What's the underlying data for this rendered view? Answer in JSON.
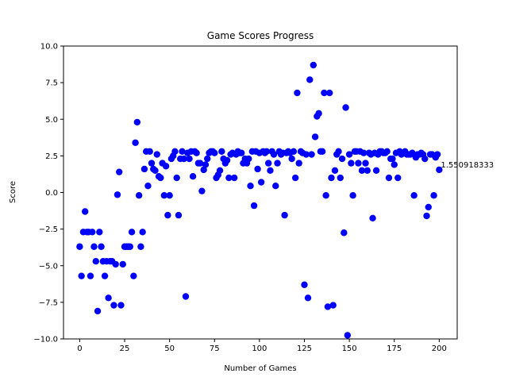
{
  "chart_data": {
    "type": "scatter",
    "title": "Game Scores Progress",
    "xlabel": "Number of Games",
    "ylabel": "Score",
    "xlim": [
      -9,
      210
    ],
    "ylim": [
      -10,
      10
    ],
    "xticks": [
      0,
      25,
      50,
      75,
      100,
      125,
      150,
      175,
      200
    ],
    "yticks": [
      -10.0,
      -7.5,
      -5.0,
      -2.5,
      0.0,
      2.5,
      5.0,
      7.5,
      10.0
    ],
    "xtick_labels": [
      "0",
      "25",
      "50",
      "75",
      "100",
      "125",
      "150",
      "175",
      "200"
    ],
    "ytick_labels": [
      "−10.0",
      "−7.5",
      "−5.0",
      "−2.5",
      "0.0",
      "2.5",
      "5.0",
      "7.5",
      "10.0"
    ],
    "grid": false,
    "marker_color": "#0000ff",
    "annotation": {
      "x": 200,
      "y": 1.55,
      "text": "1.550918333"
    },
    "points": [
      [
        0,
        -3.7
      ],
      [
        1,
        -5.7
      ],
      [
        2,
        -2.7
      ],
      [
        3,
        -1.3
      ],
      [
        4,
        -2.7
      ],
      [
        5,
        -2.7
      ],
      [
        6,
        -5.7
      ],
      [
        7,
        -2.7
      ],
      [
        8,
        -3.7
      ],
      [
        9,
        -4.7
      ],
      [
        10,
        -8.1
      ],
      [
        11,
        -2.7
      ],
      [
        12,
        -3.7
      ],
      [
        13,
        -4.7
      ],
      [
        14,
        -5.7
      ],
      [
        15,
        -4.7
      ],
      [
        16,
        -7.2
      ],
      [
        17,
        -4.7
      ],
      [
        18,
        -4.7
      ],
      [
        19,
        -7.7
      ],
      [
        20,
        -4.9
      ],
      [
        21,
        -0.15
      ],
      [
        22,
        1.4
      ],
      [
        23,
        -7.7
      ],
      [
        24,
        -4.9
      ],
      [
        25,
        -3.7
      ],
      [
        26,
        -3.7
      ],
      [
        27,
        -3.7
      ],
      [
        28,
        -3.7
      ],
      [
        29,
        -2.7
      ],
      [
        30,
        -5.7
      ],
      [
        31,
        3.4
      ],
      [
        32,
        4.8
      ],
      [
        33,
        -0.2
      ],
      [
        34,
        -3.7
      ],
      [
        35,
        -2.7
      ],
      [
        36,
        1.6
      ],
      [
        37,
        2.8
      ],
      [
        38,
        0.45
      ],
      [
        39,
        2.8
      ],
      [
        40,
        2.0
      ],
      [
        41,
        1.6
      ],
      [
        42,
        1.5
      ],
      [
        43,
        2.6
      ],
      [
        44,
        1.1
      ],
      [
        45,
        1.0
      ],
      [
        46,
        2.0
      ],
      [
        47,
        -0.2
      ],
      [
        48,
        1.8
      ],
      [
        49,
        -1.55
      ],
      [
        50,
        -0.2
      ],
      [
        51,
        2.3
      ],
      [
        52,
        2.5
      ],
      [
        53,
        2.8
      ],
      [
        54,
        1.0
      ],
      [
        55,
        -1.55
      ],
      [
        56,
        2.3
      ],
      [
        57,
        2.8
      ],
      [
        58,
        2.3
      ],
      [
        59,
        -7.1
      ],
      [
        60,
        2.7
      ],
      [
        61,
        2.3
      ],
      [
        62,
        2.8
      ],
      [
        63,
        1.1
      ],
      [
        64,
        2.8
      ],
      [
        65,
        2.7
      ],
      [
        66,
        2.0
      ],
      [
        67,
        2.0
      ],
      [
        68,
        0.1
      ],
      [
        69,
        1.55
      ],
      [
        70,
        1.9
      ],
      [
        71,
        2.3
      ],
      [
        72,
        2.7
      ],
      [
        73,
        2.8
      ],
      [
        74,
        2.8
      ],
      [
        75,
        2.7
      ],
      [
        76,
        1.0
      ],
      [
        77,
        1.2
      ],
      [
        78,
        1.5
      ],
      [
        79,
        2.8
      ],
      [
        80,
        2.3
      ],
      [
        81,
        2.0
      ],
      [
        82,
        2.2
      ],
      [
        83,
        1.0
      ],
      [
        84,
        2.6
      ],
      [
        85,
        2.7
      ],
      [
        86,
        1.0
      ],
      [
        87,
        2.6
      ],
      [
        88,
        2.8
      ],
      [
        89,
        2.7
      ],
      [
        90,
        2.7
      ],
      [
        91,
        2.0
      ],
      [
        92,
        2.3
      ],
      [
        93,
        2.0
      ],
      [
        94,
        2.3
      ],
      [
        95,
        0.45
      ],
      [
        96,
        2.8
      ],
      [
        97,
        -0.9
      ],
      [
        98,
        2.8
      ],
      [
        99,
        1.6
      ],
      [
        100,
        2.7
      ],
      [
        101,
        0.7
      ],
      [
        102,
        2.8
      ],
      [
        103,
        2.7
      ],
      [
        104,
        2.8
      ],
      [
        105,
        2.0
      ],
      [
        106,
        1.5
      ],
      [
        107,
        2.8
      ],
      [
        108,
        2.6
      ],
      [
        109,
        0.45
      ],
      [
        110,
        2.0
      ],
      [
        111,
        2.8
      ],
      [
        112,
        2.6
      ],
      [
        113,
        2.7
      ],
      [
        114,
        -1.55
      ],
      [
        115,
        2.7
      ],
      [
        116,
        2.8
      ],
      [
        117,
        2.7
      ],
      [
        118,
        2.3
      ],
      [
        119,
        2.8
      ],
      [
        120,
        1.0
      ],
      [
        121,
        6.8
      ],
      [
        122,
        2.0
      ],
      [
        123,
        2.8
      ],
      [
        124,
        2.7
      ],
      [
        125,
        -6.3
      ],
      [
        126,
        2.6
      ],
      [
        127,
        -7.2
      ],
      [
        128,
        7.7
      ],
      [
        129,
        2.6
      ],
      [
        130,
        8.7
      ],
      [
        131,
        3.8
      ],
      [
        132,
        5.2
      ],
      [
        133,
        5.4
      ],
      [
        134,
        2.8
      ],
      [
        135,
        2.8
      ],
      [
        136,
        6.8
      ],
      [
        137,
        -0.2
      ],
      [
        138,
        -7.8
      ],
      [
        139,
        6.8
      ],
      [
        140,
        1.0
      ],
      [
        141,
        -7.7
      ],
      [
        142,
        1.5
      ],
      [
        143,
        2.6
      ],
      [
        144,
        2.8
      ],
      [
        145,
        1.0
      ],
      [
        146,
        2.3
      ],
      [
        147,
        -2.75
      ],
      [
        148,
        5.8
      ],
      [
        149,
        -9.75
      ],
      [
        150,
        2.6
      ],
      [
        151,
        2.0
      ],
      [
        152,
        -0.2
      ],
      [
        153,
        2.8
      ],
      [
        154,
        2.8
      ],
      [
        155,
        2.0
      ],
      [
        156,
        2.8
      ],
      [
        157,
        1.5
      ],
      [
        158,
        2.7
      ],
      [
        159,
        2.0
      ],
      [
        160,
        1.5
      ],
      [
        161,
        2.7
      ],
      [
        162,
        2.6
      ],
      [
        163,
        -1.75
      ],
      [
        164,
        2.7
      ],
      [
        165,
        1.5
      ],
      [
        166,
        2.6
      ],
      [
        167,
        2.8
      ],
      [
        168,
        2.8
      ],
      [
        169,
        2.7
      ],
      [
        170,
        2.7
      ],
      [
        171,
        2.8
      ],
      [
        172,
        1.0
      ],
      [
        173,
        2.3
      ],
      [
        174,
        2.3
      ],
      [
        175,
        1.9
      ],
      [
        176,
        2.7
      ],
      [
        177,
        1.0
      ],
      [
        178,
        2.8
      ],
      [
        179,
        2.6
      ],
      [
        180,
        2.7
      ],
      [
        181,
        2.8
      ],
      [
        182,
        2.6
      ],
      [
        183,
        2.6
      ],
      [
        184,
        2.6
      ],
      [
        185,
        2.7
      ],
      [
        186,
        -0.2
      ],
      [
        187,
        2.4
      ],
      [
        188,
        2.6
      ],
      [
        189,
        2.6
      ],
      [
        190,
        2.7
      ],
      [
        191,
        2.6
      ],
      [
        192,
        2.3
      ],
      [
        193,
        -1.6
      ],
      [
        194,
        -1.0
      ],
      [
        195,
        2.6
      ],
      [
        196,
        2.6
      ],
      [
        197,
        -0.2
      ],
      [
        198,
        2.4
      ],
      [
        199,
        2.6
      ],
      [
        200,
        1.55
      ]
    ]
  }
}
